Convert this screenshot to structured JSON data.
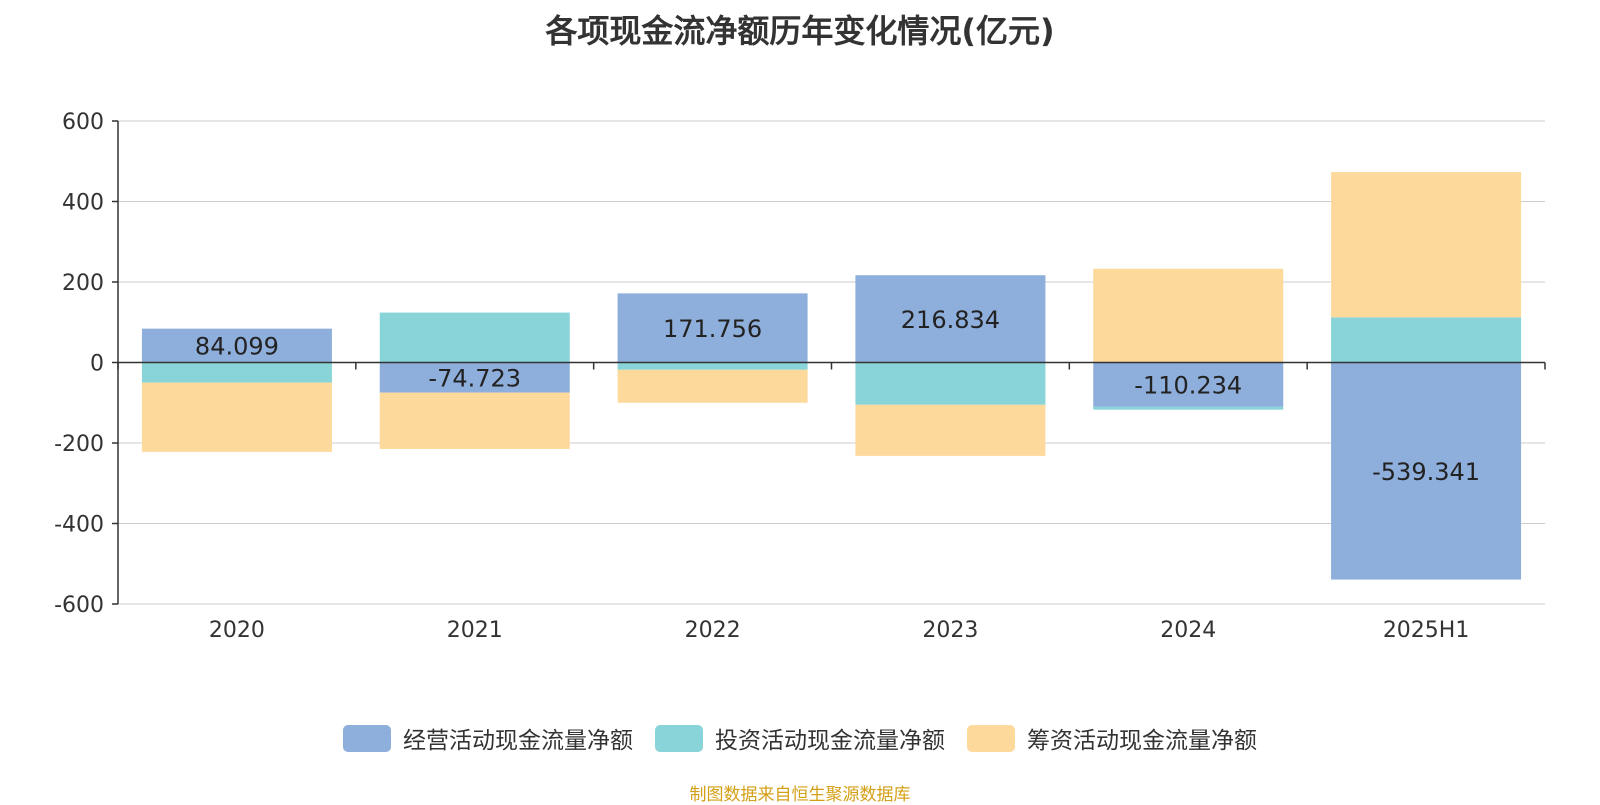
{
  "chart_data": {
    "type": "bar",
    "stacked": true,
    "title": "各项现金流净额历年变化情况(亿元)",
    "categories": [
      "2020",
      "2021",
      "2022",
      "2023",
      "2024",
      "2025H1"
    ],
    "ylim": [
      -600,
      600
    ],
    "yticks": [
      "600",
      "400",
      "200",
      "0",
      "-200",
      "-400",
      "-600"
    ],
    "grid": true,
    "legend_position": "bottom",
    "series": [
      {
        "name": "经营活动现金流量净额",
        "color": "#8eaedb",
        "values": [
          84.099,
          -74.723,
          171.756,
          216.834,
          -110.234,
          -539.341
        ],
        "labels": [
          "84.099",
          "-74.723",
          "171.756",
          "216.834",
          "-110.234",
          "-539.341"
        ]
      },
      {
        "name": "投资活动现金流量净额",
        "color": "#88d4d8",
        "values": [
          -50,
          124,
          -18,
          -105,
          -7,
          112
        ]
      },
      {
        "name": "筹资活动现金流量净额",
        "color": "#fdd99b",
        "values": [
          -172,
          -140,
          -82,
          -127,
          233,
          361
        ]
      }
    ]
  },
  "source_text": "制图数据来自恒生聚源数据库"
}
